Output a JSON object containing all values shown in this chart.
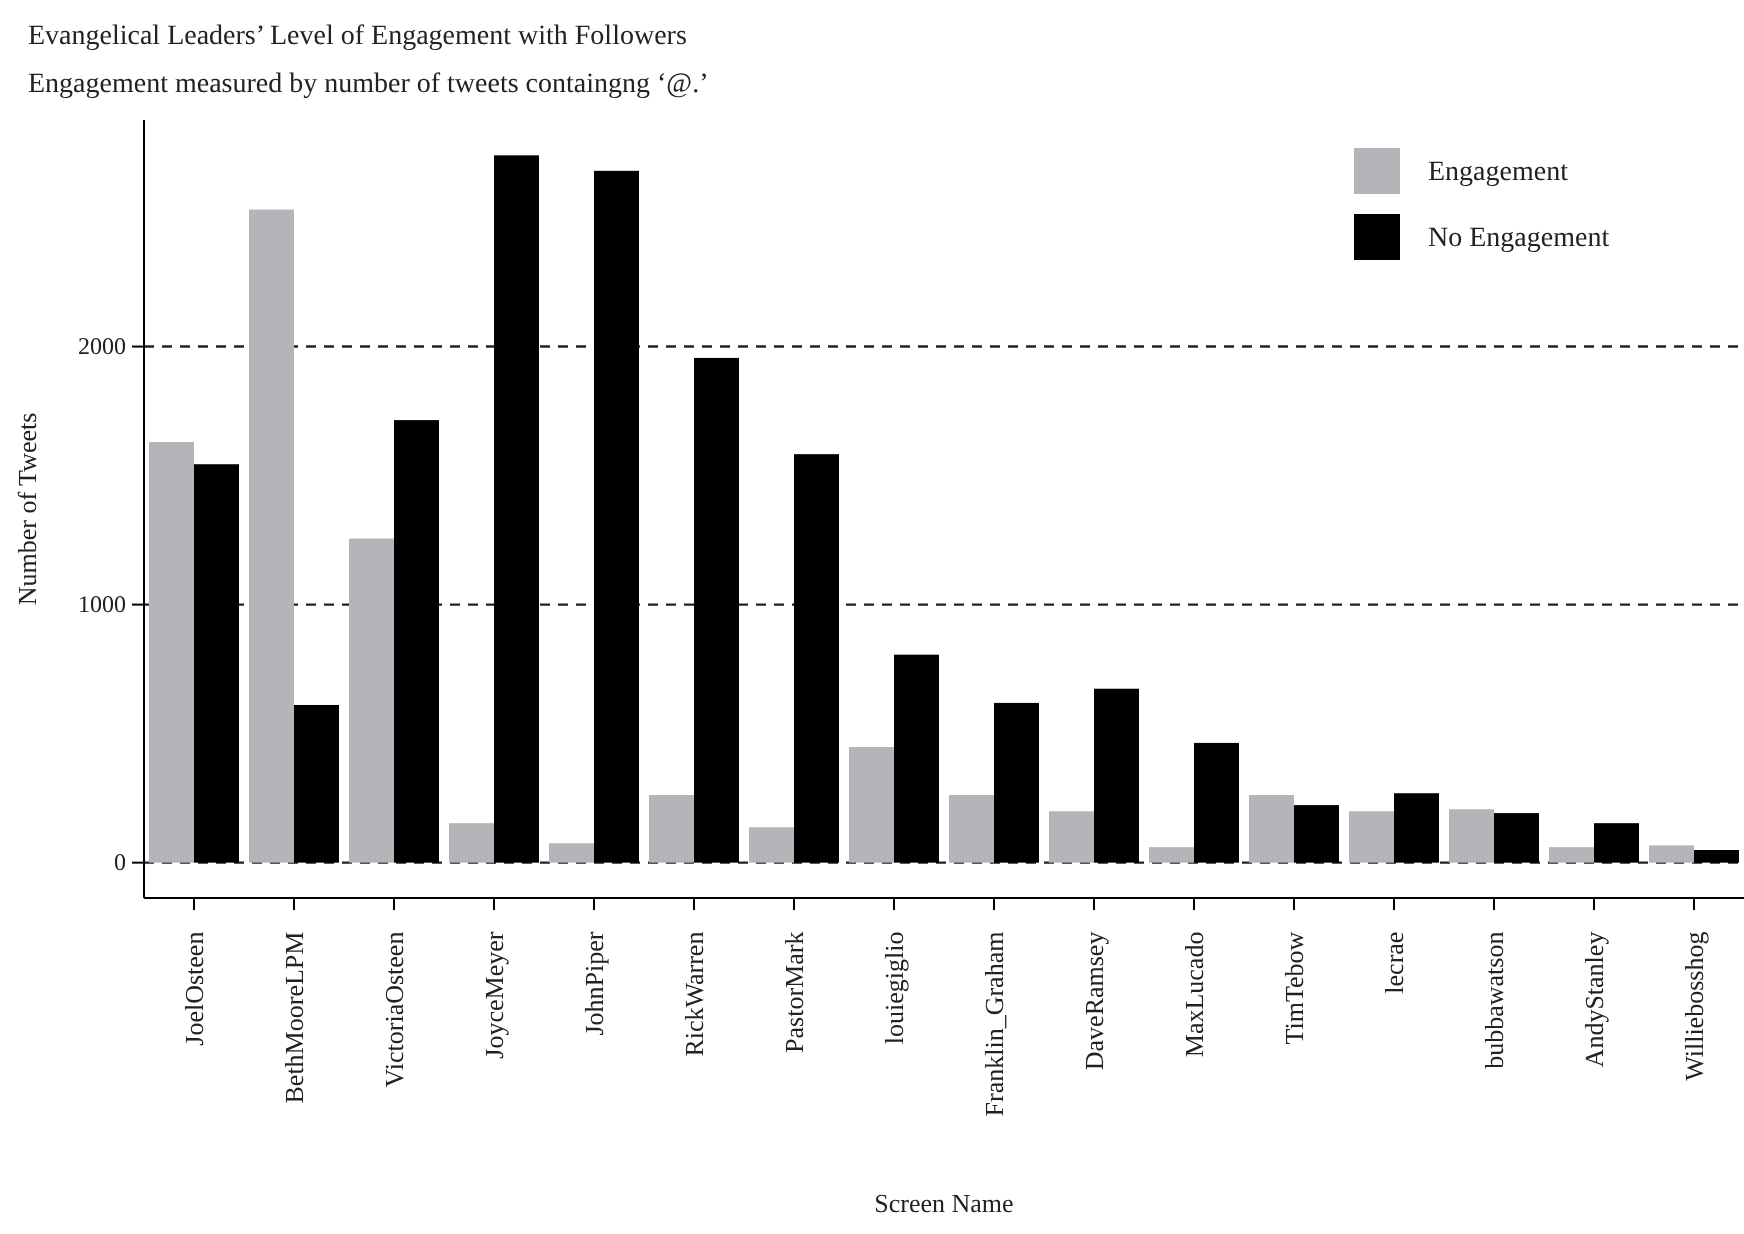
{
  "chart_data": {
    "type": "bar",
    "title": "Evangelical Leaders’ Level of Engagement with Followers",
    "subtitle": "Engagement measured by number of tweets containgng ‘@.’",
    "xlabel": "Screen Name",
    "ylabel": "Number of Tweets",
    "categories": [
      "JoelOsteen",
      "BethMooreLPM",
      "VictoriaOsteen",
      "JoyceMeyer",
      "JohnPiper",
      "RickWarren",
      "PastorMark",
      "louiegiglio",
      "Franklin_Graham",
      "DaveRamsey",
      "MaxLucado",
      "TimTebow",
      "lecrae",
      "bubbawatson",
      "AndyStanley",
      "Williebosshog"
    ],
    "series": [
      {
        "name": "Engagement",
        "color": "#b4b5b8",
        "values": [
          1630,
          2531,
          1256,
          153,
          75,
          262,
          137,
          448,
          262,
          199,
          60,
          262,
          199,
          207,
          60,
          67
        ]
      },
      {
        "name": "No Engagement",
        "color": "#000000",
        "values": [
          1544,
          611,
          1715,
          2741,
          2681,
          1956,
          1583,
          806,
          619,
          674,
          464,
          223,
          269,
          192,
          153,
          49
        ]
      }
    ],
    "ylim": [
      -137,
      2878
    ],
    "yticks": [
      0,
      1000,
      2000
    ],
    "grid": "y",
    "line_style": "dashed",
    "legend": "top right"
  }
}
